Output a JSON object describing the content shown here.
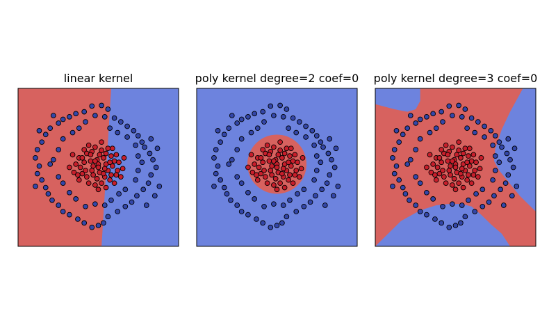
{
  "chart_data": [
    {
      "type": "scatter",
      "title": "linear kernel",
      "xlabel": "",
      "ylabel": "",
      "xlim": [
        -1.25,
        1.25
      ],
      "ylim": [
        -1.25,
        1.25
      ],
      "grid": false,
      "decision_boundary": "line",
      "line": {
        "x_top": 0.2,
        "x_bottom": 0.05
      },
      "regions": {
        "left": "#d7625f",
        "right": "#6d83de"
      }
    },
    {
      "type": "scatter",
      "title": "poly kernel degree=2 coef=0",
      "xlabel": "",
      "ylabel": "",
      "xlim": [
        -1.25,
        1.25
      ],
      "ylim": [
        -1.25,
        1.25
      ],
      "grid": false,
      "decision_boundary": "circle",
      "circle": {
        "cx": 0.0,
        "cy": 0.05,
        "r": 0.46
      },
      "regions": {
        "inside": "#d7625f",
        "outside": "#6d83de"
      }
    },
    {
      "type": "scatter",
      "title": "poly kernel degree=3 coef=0",
      "xlabel": "",
      "ylabel": "",
      "xlim": [
        -1.25,
        1.25
      ],
      "ylim": [
        -1.25,
        1.25
      ],
      "grid": false,
      "decision_boundary": "cubic",
      "regions": {
        "main": "#d7625f",
        "pockets": "#6d83de"
      }
    }
  ],
  "scatter_data": {
    "inner_class": {
      "color": "#c81e2b",
      "points": [
        [
          -0.18,
          0.22
        ],
        [
          -0.1,
          0.25
        ],
        [
          0.05,
          0.27
        ],
        [
          0.12,
          0.22
        ],
        [
          0.2,
          0.18
        ],
        [
          0.25,
          0.1
        ],
        [
          0.22,
          0.02
        ],
        [
          0.15,
          -0.05
        ],
        [
          0.08,
          0.15
        ],
        [
          -0.02,
          0.12
        ],
        [
          -0.12,
          0.1
        ],
        [
          -0.22,
          0.08
        ],
        [
          -0.28,
          0.0
        ],
        [
          -0.25,
          -0.1
        ],
        [
          -0.18,
          -0.15
        ],
        [
          -0.08,
          -0.12
        ],
        [
          0.02,
          -0.08
        ],
        [
          0.1,
          -0.15
        ],
        [
          0.18,
          -0.2
        ],
        [
          0.05,
          -0.25
        ],
        [
          -0.05,
          -0.28
        ],
        [
          -0.15,
          -0.25
        ],
        [
          -0.3,
          0.15
        ],
        [
          -0.35,
          0.05
        ],
        [
          0.3,
          -0.05
        ],
        [
          0.28,
          0.2
        ],
        [
          0.0,
          0.05
        ],
        [
          -0.08,
          0.02
        ],
        [
          0.12,
          0.05
        ],
        [
          -0.2,
          -0.05
        ],
        [
          0.2,
          -0.12
        ],
        [
          -0.12,
          0.2
        ],
        [
          0.02,
          0.2
        ],
        [
          0.1,
          -0.02
        ],
        [
          -0.02,
          -0.18
        ],
        [
          0.32,
          0.08
        ],
        [
          -0.38,
          -0.08
        ],
        [
          -0.3,
          -0.2
        ],
        [
          0.15,
          0.3
        ],
        [
          -0.05,
          0.32
        ],
        [
          0.25,
          -0.25
        ],
        [
          0.35,
          -0.15
        ],
        [
          -0.4,
          0.2
        ],
        [
          0.4,
          0.15
        ],
        [
          0.05,
          0.4
        ],
        [
          -0.15,
          0.35
        ],
        [
          0.0,
          -0.35
        ],
        [
          0.12,
          -0.32
        ],
        [
          -0.22,
          0.28
        ],
        [
          0.22,
          0.3
        ],
        [
          0.38,
          -0.02
        ],
        [
          -0.45,
          0.0
        ],
        [
          0.0,
          0.0
        ],
        [
          -0.05,
          0.1
        ],
        [
          0.08,
          -0.1
        ],
        [
          -0.1,
          -0.05
        ],
        [
          0.18,
          0.08
        ],
        [
          -0.25,
          0.15
        ],
        [
          0.28,
          -0.12
        ],
        [
          -0.32,
          -0.12
        ]
      ]
    },
    "outer_class": {
      "color": "#3346a8",
      "points": [
        [
          -0.1,
          0.97
        ],
        [
          0.05,
          0.98
        ],
        [
          0.15,
          0.92
        ],
        [
          -0.22,
          0.88
        ],
        [
          -0.35,
          0.85
        ],
        [
          -0.45,
          0.8
        ],
        [
          -0.55,
          0.76
        ],
        [
          -0.62,
          0.7
        ],
        [
          -0.75,
          0.62
        ],
        [
          -0.82,
          0.52
        ],
        [
          -0.88,
          0.4
        ],
        [
          -0.95,
          0.28
        ],
        [
          -0.98,
          0.15
        ],
        [
          -0.92,
          0.02
        ],
        [
          -0.95,
          -0.1
        ],
        [
          -0.88,
          -0.2
        ],
        [
          -0.82,
          -0.32
        ],
        [
          -0.78,
          -0.42
        ],
        [
          -0.72,
          -0.52
        ],
        [
          -0.62,
          -0.6
        ],
        [
          -0.55,
          -0.7
        ],
        [
          -0.45,
          -0.75
        ],
        [
          -0.32,
          -0.82
        ],
        [
          -0.22,
          -0.88
        ],
        [
          -0.1,
          -0.95
        ],
        [
          0.0,
          -0.92
        ],
        [
          0.08,
          -0.88
        ],
        [
          0.15,
          -0.78
        ],
        [
          0.3,
          -0.7
        ],
        [
          0.42,
          -0.62
        ],
        [
          0.52,
          -0.55
        ],
        [
          0.6,
          -0.45
        ],
        [
          0.7,
          -0.35
        ],
        [
          0.78,
          -0.25
        ],
        [
          0.82,
          -0.12
        ],
        [
          0.9,
          0.0
        ],
        [
          0.85,
          0.12
        ],
        [
          0.8,
          0.22
        ],
        [
          0.72,
          0.32
        ],
        [
          0.68,
          0.4
        ],
        [
          0.62,
          0.5
        ],
        [
          0.55,
          0.58
        ],
        [
          0.45,
          0.65
        ],
        [
          0.35,
          0.72
        ],
        [
          0.25,
          0.78
        ],
        [
          0.1,
          0.8
        ],
        [
          -0.05,
          0.82
        ],
        [
          -0.2,
          0.72
        ],
        [
          -0.3,
          0.62
        ],
        [
          -0.4,
          0.55
        ],
        [
          -0.55,
          0.45
        ],
        [
          -0.62,
          0.28
        ],
        [
          -0.7,
          0.12
        ],
        [
          -0.75,
          0.05
        ],
        [
          -0.62,
          -0.15
        ],
        [
          -0.55,
          -0.25
        ],
        [
          -0.45,
          -0.4
        ],
        [
          -0.35,
          -0.5
        ],
        [
          -0.2,
          -0.62
        ],
        [
          -0.05,
          -0.58
        ],
        [
          0.1,
          -0.6
        ],
        [
          0.2,
          -0.52
        ],
        [
          0.32,
          -0.42
        ],
        [
          0.42,
          -0.35
        ],
        [
          0.58,
          -0.2
        ],
        [
          0.62,
          -0.05
        ],
        [
          0.68,
          0.08
        ],
        [
          0.62,
          0.18
        ],
        [
          0.58,
          0.35
        ],
        [
          0.45,
          0.48
        ],
        [
          0.3,
          0.55
        ],
        [
          0.18,
          0.62
        ],
        [
          0.82,
          0.45
        ],
        [
          0.92,
          0.3
        ],
        [
          0.95,
          -0.3
        ],
        [
          0.88,
          -0.45
        ],
        [
          0.75,
          -0.6
        ],
        [
          -0.98,
          -0.3
        ],
        [
          -0.92,
          0.58
        ],
        [
          -0.7,
          0.82
        ]
      ]
    }
  }
}
